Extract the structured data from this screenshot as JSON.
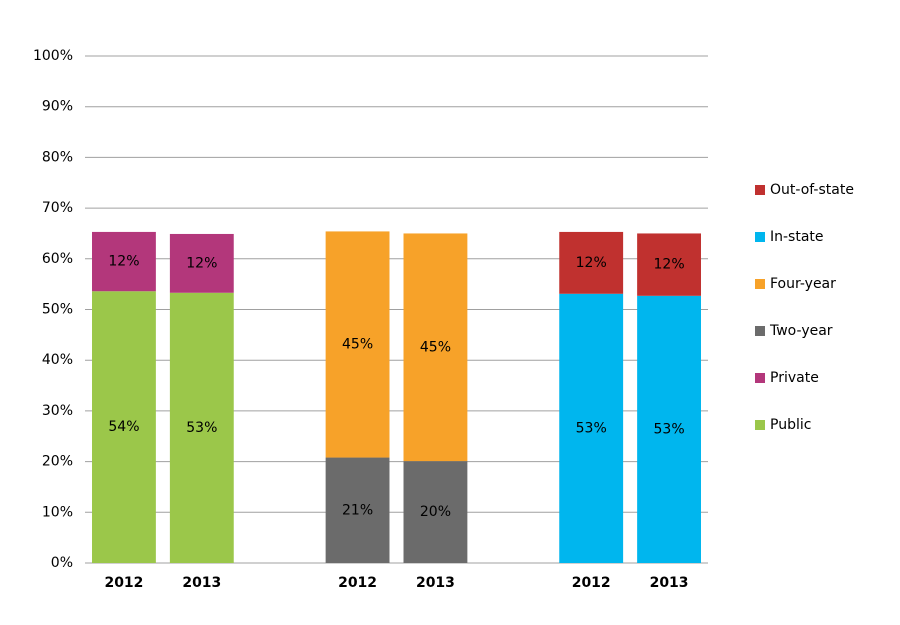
{
  "chart_data": {
    "type": "stacked_bar",
    "categories": [
      "2012",
      "2013",
      null,
      "2012",
      "2013",
      null,
      "2012",
      "2013"
    ],
    "series": [
      {
        "name": "Public",
        "color": "#9bc74a",
        "values": [
          53.6,
          53.3,
          null,
          null,
          null,
          null,
          null,
          null
        ],
        "value_labels": [
          "54%",
          "53%",
          null,
          null,
          null,
          null,
          null,
          null
        ]
      },
      {
        "name": "Private",
        "color": "#b3377b",
        "values": [
          11.7,
          11.6,
          null,
          null,
          null,
          null,
          null,
          null
        ],
        "value_labels": [
          "12%",
          "12%",
          null,
          null,
          null,
          null,
          null,
          null
        ]
      },
      {
        "name": "Two-year",
        "color": "#6b6b6b",
        "values": [
          null,
          null,
          null,
          20.8,
          20.1,
          null,
          null,
          null
        ],
        "value_labels": [
          null,
          null,
          null,
          "21%",
          "20%",
          null,
          null,
          null
        ]
      },
      {
        "name": "Four-year",
        "color": "#f7a229",
        "values": [
          null,
          null,
          null,
          44.6,
          44.9,
          null,
          null,
          null
        ],
        "value_labels": [
          null,
          null,
          null,
          "45%",
          "45%",
          null,
          null,
          null
        ]
      },
      {
        "name": "In-state",
        "color": "#00b6ee",
        "values": [
          null,
          null,
          null,
          null,
          null,
          null,
          53.1,
          52.7
        ],
        "value_labels": [
          null,
          null,
          null,
          null,
          null,
          null,
          "53%",
          "53%"
        ]
      },
      {
        "name": "Out-of-state",
        "color": "#c0312f",
        "values": [
          null,
          null,
          null,
          null,
          null,
          null,
          12.2,
          12.3
        ],
        "value_labels": [
          null,
          null,
          null,
          null,
          null,
          null,
          "12%",
          "12%"
        ]
      }
    ],
    "ylim": [
      0,
      100
    ],
    "yticks": [
      {
        "value": 0,
        "label": "0%"
      },
      {
        "value": 10,
        "label": "10%"
      },
      {
        "value": 20,
        "label": "20%"
      },
      {
        "value": 30,
        "label": "30%"
      },
      {
        "value": 40,
        "label": "40%"
      },
      {
        "value": 50,
        "label": "50%"
      },
      {
        "value": 60,
        "label": "60%"
      },
      {
        "value": 70,
        "label": "70%"
      },
      {
        "value": 80,
        "label": "80%"
      },
      {
        "value": 90,
        "label": "90%"
      },
      {
        "value": 100,
        "label": "100%"
      }
    ],
    "grid": true,
    "legend": "right"
  }
}
